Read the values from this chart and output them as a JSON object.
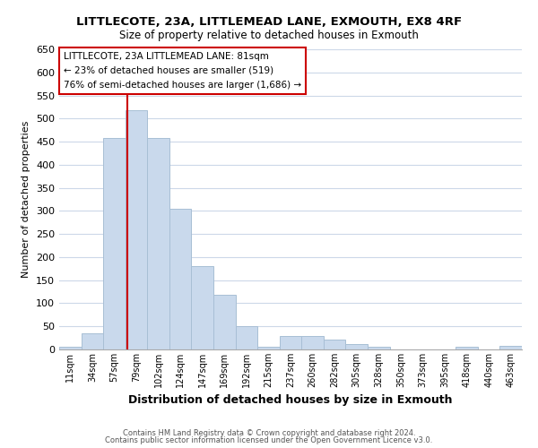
{
  "title": "LITTLECOTE, 23A, LITTLEMEAD LANE, EXMOUTH, EX8 4RF",
  "subtitle": "Size of property relative to detached houses in Exmouth",
  "xlabel": "Distribution of detached houses by size in Exmouth",
  "ylabel": "Number of detached properties",
  "bar_labels": [
    "11sqm",
    "34sqm",
    "57sqm",
    "79sqm",
    "102sqm",
    "124sqm",
    "147sqm",
    "169sqm",
    "192sqm",
    "215sqm",
    "237sqm",
    "260sqm",
    "282sqm",
    "305sqm",
    "328sqm",
    "350sqm",
    "373sqm",
    "395sqm",
    "418sqm",
    "440sqm",
    "463sqm"
  ],
  "bar_values": [
    5,
    35,
    458,
    519,
    458,
    305,
    181,
    118,
    50,
    5,
    30,
    29,
    22,
    12,
    5,
    0,
    0,
    0,
    5,
    0,
    8
  ],
  "bar_color": "#c9d9ec",
  "bar_edge_color": "#a8bfd5",
  "vline_color": "#cc0000",
  "vline_pos": 2.575,
  "ylim": [
    0,
    650
  ],
  "yticks": [
    0,
    50,
    100,
    150,
    200,
    250,
    300,
    350,
    400,
    450,
    500,
    550,
    600,
    650
  ],
  "annotation_title": "LITTLECOTE, 23A LITTLEMEAD LANE: 81sqm",
  "annotation_line2": "← 23% of detached houses are smaller (519)",
  "annotation_line3": "76% of semi-detached houses are larger (1,686) →",
  "footer_line1": "Contains HM Land Registry data © Crown copyright and database right 2024.",
  "footer_line2": "Contains public sector information licensed under the Open Government Licence v3.0.",
  "background_color": "#ffffff",
  "grid_color": "#ccd8e8"
}
